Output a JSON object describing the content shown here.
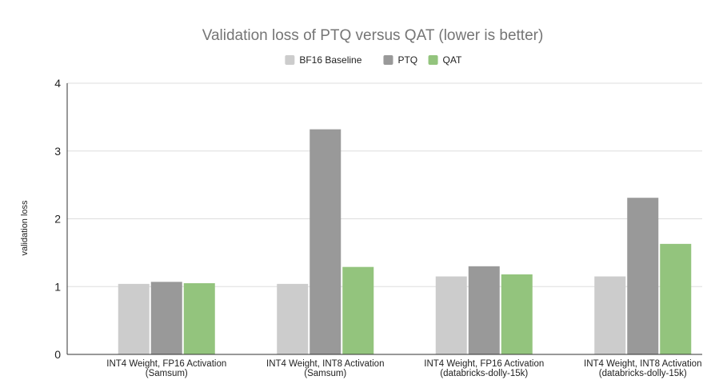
{
  "chart_data": {
    "type": "bar",
    "title": "Validation loss of PTQ versus QAT (lower is better)",
    "xlabel": "",
    "ylabel": "validation loss",
    "ylim": [
      0,
      4
    ],
    "yticks": [
      "0",
      "1",
      "2",
      "3",
      "4"
    ],
    "grid": true,
    "legend_position": "top",
    "categories": [
      [
        "INT4 Weight, FP16 Activation",
        "(Samsum)"
      ],
      [
        "INT4 Weight, INT8 Activation",
        "(Samsum)"
      ],
      [
        "INT4 Weight, FP16 Activation",
        "(databricks-dolly-15k)"
      ],
      [
        "INT4 Weight, INT8 Activation",
        "(databricks-dolly-15k)"
      ]
    ],
    "series": [
      {
        "name": "BF16 Baseline",
        "color": "#cccccc",
        "values": [
          1.04,
          1.04,
          1.15,
          1.15
        ]
      },
      {
        "name": "PTQ",
        "color": "#999999",
        "values": [
          1.07,
          3.32,
          1.3,
          2.31
        ]
      },
      {
        "name": "QAT",
        "color": "#93c47d",
        "values": [
          1.05,
          1.29,
          1.18,
          1.63
        ]
      }
    ]
  }
}
